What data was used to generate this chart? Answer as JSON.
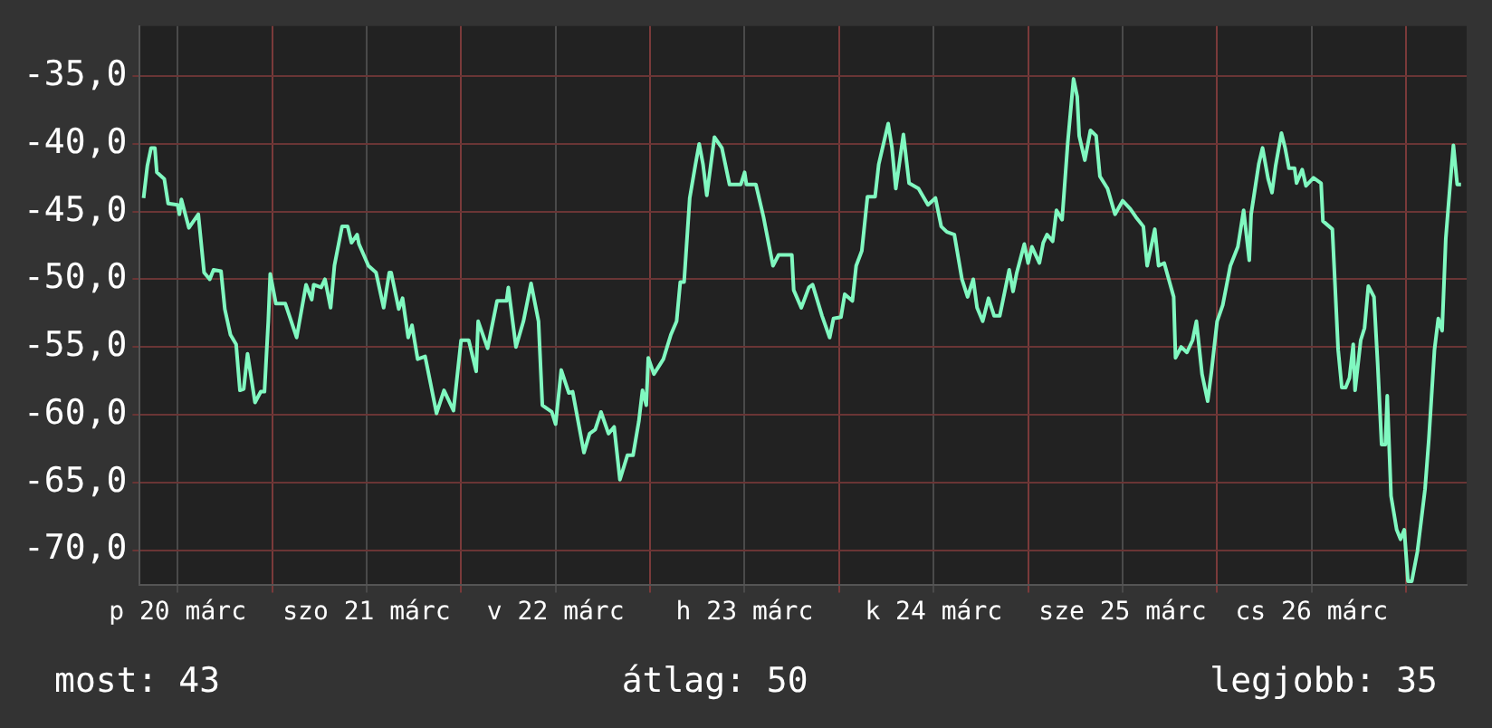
{
  "chart_data": {
    "type": "line",
    "x": [
      "--03-20T07:41",
      "--03-20T08:10",
      "--03-20T08:38",
      "--03-20T09:07",
      "--03-20T09:22",
      "--03-20T10:19",
      "--03-20T10:48",
      "--03-20T12:00",
      "--03-20T12:14",
      "--03-20T12:29",
      "--03-20T13:26",
      "--03-20T14:38",
      "--03-20T15:22",
      "--03-20T16:05",
      "--03-20T16:34",
      "--03-20T17:31",
      "--03-20T18:00",
      "--03-20T18:43",
      "--03-20T19:26",
      "--03-20T19:55",
      "--03-20T20:24",
      "--03-20T20:53",
      "--03-20T21:50",
      "--03-20T22:34",
      "--03-20T23:02",
      "--03-20T23:31",
      "--03-20T23:46",
      "--03-21T00:29",
      "--03-21T01:41",
      "--03-21T03:07",
      "--03-21T04:19",
      "--03-21T05:02",
      "--03-21T05:17",
      "--03-21T06:14",
      "--03-21T06:43",
      "--03-21T07:26",
      "--03-21T07:55",
      "--03-21T08:53",
      "--03-21T09:36",
      "--03-21T10:05",
      "--03-21T10:48",
      "--03-21T11:02",
      "--03-21T12:14",
      "--03-21T13:12",
      "--03-21T14:10",
      "--03-21T14:53",
      "--03-21T15:07",
      "--03-21T16:05",
      "--03-21T16:34",
      "--03-21T17:17",
      "--03-21T17:46",
      "--03-21T18:29",
      "--03-21T19:26",
      "--03-21T20:53",
      "--03-21T21:50",
      "--03-21T23:02",
      "--03-22T00:00",
      "--03-22T00:58",
      "--03-22T01:55",
      "--03-22T02:10",
      "--03-22T03:22",
      "--03-22T04:34",
      "--03-22T05:46",
      "--03-22T06:00",
      "--03-22T06:58",
      "--03-22T07:55",
      "--03-22T08:53",
      "--03-22T09:50",
      "--03-22T10:19",
      "--03-22T11:31",
      "--03-22T12:00",
      "--03-22T12:43",
      "--03-22T13:41",
      "--03-22T14:10",
      "--03-22T15:36",
      "--03-22T16:19",
      "--03-22T17:02",
      "--03-22T17:46",
      "--03-22T18:43",
      "--03-22T19:26",
      "--03-22T20:10",
      "--03-22T21:07",
      "--03-22T21:50",
      "--03-22T22:34",
      "--03-22T23:02",
      "--03-22T23:31",
      "--03-22T23:46",
      "--03-23T00:29",
      "--03-23T01:41",
      "--03-23T02:38",
      "--03-23T03:22",
      "--03-23T03:50",
      "--03-23T04:19",
      "--03-23T05:02",
      "--03-23T05:46",
      "--03-23T06:14",
      "--03-23T06:43",
      "--03-23T07:12",
      "--03-23T08:10",
      "--03-23T09:07",
      "--03-23T10:05",
      "--03-23T11:31",
      "--03-23T12:00",
      "--03-23T12:14",
      "--03-23T13:26",
      "--03-23T14:24",
      "--03-23T15:36",
      "--03-23T16:19",
      "--03-23T17:17",
      "--03-23T18:00",
      "--03-23T18:14",
      "--03-23T19:12",
      "--03-23T20:10",
      "--03-23T20:38",
      "--03-23T21:50",
      "--03-23T22:48",
      "--03-23T23:17",
      "--03-24T00:14",
      "--03-24T00:43",
      "--03-24T01:41",
      "--03-24T02:10",
      "--03-24T02:53",
      "--03-24T03:36",
      "--03-24T04:34",
      "--03-24T05:02",
      "--03-24T06:14",
      "--03-24T06:43",
      "--03-24T07:12",
      "--03-24T08:10",
      "--03-24T08:53",
      "--03-24T10:05",
      "--03-24T11:17",
      "--03-24T12:14",
      "--03-24T12:58",
      "--03-24T13:41",
      "--03-24T14:38",
      "--03-24T15:36",
      "--03-24T16:19",
      "--03-24T17:02",
      "--03-24T17:31",
      "--03-24T18:14",
      "--03-24T18:58",
      "--03-24T19:41",
      "--03-24T20:24",
      "--03-24T21:36",
      "--03-24T22:05",
      "--03-24T22:34",
      "--03-24T23:31",
      "--03-25T00:00",
      "--03-25T00:29",
      "--03-25T01:26",
      "--03-25T01:55",
      "--03-25T02:24",
      "--03-25T03:07",
      "--03-25T03:36",
      "--03-25T04:19",
      "--03-25T05:02",
      "--03-25T05:46",
      "--03-25T06:14",
      "--03-25T06:29",
      "--03-25T07:12",
      "--03-25T07:55",
      "--03-25T08:38",
      "--03-25T09:07",
      "--03-25T10:05",
      "--03-25T11:02",
      "--03-25T12:00",
      "--03-25T12:58",
      "--03-25T13:41",
      "--03-25T14:38",
      "--03-25T15:07",
      "--03-25T16:05",
      "--03-25T16:34",
      "--03-25T17:17",
      "--03-25T18:29",
      "--03-25T18:43",
      "--03-25T19:26",
      "--03-25T20:10",
      "--03-25T20:53",
      "--03-25T21:22",
      "--03-25T22:05",
      "--03-25T22:48",
      "--03-25T23:17",
      "--03-26T00:00",
      "--03-26T00:43",
      "--03-26T01:41",
      "--03-26T02:38",
      "--03-26T03:22",
      "--03-26T04:05",
      "--03-26T04:19",
      "--03-26T05:17",
      "--03-26T05:46",
      "--03-26T06:29",
      "--03-26T06:58",
      "--03-26T07:26",
      "--03-26T08:10",
      "--03-26T08:38",
      "--03-26T09:07",
      "--03-26T09:50",
      "--03-26T10:05",
      "--03-26T10:48",
      "--03-26T11:17",
      "--03-26T12:14",
      "--03-26T13:12",
      "--03-26T13:26",
      "--03-26T14:38",
      "--03-26T15:22",
      "--03-26T15:50",
      "--03-26T16:19",
      "--03-26T16:48",
      "--03-26T17:17",
      "--03-26T17:31",
      "--03-26T18:14",
      "--03-26T18:43",
      "--03-26T19:12",
      "--03-26T19:55",
      "--03-26T20:24",
      "--03-26T20:53",
      "--03-26T21:22",
      "--03-26T21:36",
      "--03-26T22:05",
      "--03-26T22:48",
      "--03-26T23:17",
      "--03-26T23:46",
      "--03-27T00:14",
      "--03-27T00:43",
      "--03-27T01:26",
      "--03-27T02:24",
      "--03-27T02:53",
      "--03-27T03:36",
      "--03-27T04:05",
      "--03-27T04:34",
      "--03-27T05:02",
      "--03-27T05:31",
      "--03-27T06:00",
      "--03-27T06:29",
      "--03-27T06:58"
    ],
    "values": [
      -44.0,
      -41.6,
      -40.3,
      -40.3,
      -42.1,
      -42.6,
      -44.4,
      -44.5,
      -45.2,
      -44.1,
      -46.2,
      -45.2,
      -49.5,
      -50.0,
      -49.3,
      -49.4,
      -52.2,
      -54.1,
      -54.8,
      -58.2,
      -58.1,
      -55.5,
      -59.1,
      -58.3,
      -58.3,
      -53.1,
      -49.6,
      -51.8,
      -51.8,
      -54.3,
      -50.4,
      -51.5,
      -50.4,
      -50.6,
      -50.0,
      -52.1,
      -49.0,
      -46.1,
      -46.1,
      -47.3,
      -46.7,
      -47.4,
      -49.0,
      -49.5,
      -52.1,
      -49.5,
      -49.5,
      -52.2,
      -51.4,
      -54.3,
      -53.4,
      -55.9,
      -55.7,
      -59.9,
      -58.2,
      -59.7,
      -54.5,
      -54.5,
      -56.8,
      -53.1,
      -55.1,
      -51.6,
      -51.6,
      -50.6,
      -55.0,
      -53.1,
      -50.3,
      -53.1,
      -59.3,
      -59.8,
      -60.7,
      -56.7,
      -58.4,
      -58.3,
      -62.8,
      -61.4,
      -61.1,
      -59.8,
      -61.4,
      -60.9,
      -64.8,
      -63.0,
      -63.0,
      -60.5,
      -58.2,
      -59.3,
      -55.8,
      -57.0,
      -55.9,
      -54.1,
      -53.1,
      -50.2,
      -50.2,
      -44.0,
      -41.5,
      -40.0,
      -41.5,
      -43.8,
      -39.5,
      -40.3,
      -43.0,
      -43.0,
      -42.1,
      -43.0,
      -43.0,
      -45.4,
      -49.0,
      -48.2,
      -48.2,
      -48.2,
      -50.8,
      -52.1,
      -50.6,
      -50.4,
      -52.7,
      -54.3,
      -52.9,
      -52.8,
      -51.1,
      -51.6,
      -49.0,
      -47.9,
      -43.9,
      -43.9,
      -41.5,
      -38.5,
      -40.3,
      -43.3,
      -39.3,
      -42.9,
      -43.3,
      -44.5,
      -44.0,
      -46.1,
      -46.5,
      -46.7,
      -50.0,
      -51.3,
      -50.0,
      -52.1,
      -53.1,
      -51.4,
      -52.7,
      -52.7,
      -49.3,
      -50.9,
      -49.5,
      -47.4,
      -48.8,
      -47.6,
      -48.8,
      -47.3,
      -46.7,
      -47.2,
      -44.9,
      -45.6,
      -39.9,
      -35.2,
      -36.5,
      -39.4,
      -41.2,
      -39.0,
      -39.4,
      -42.4,
      -43.3,
      -45.2,
      -44.2,
      -44.8,
      -45.4,
      -46.1,
      -49.0,
      -46.3,
      -49.0,
      -48.8,
      -51.3,
      -55.8,
      -55.0,
      -55.4,
      -54.5,
      -53.1,
      -57.0,
      -59.0,
      -56.8,
      -53.1,
      -51.9,
      -49.0,
      -47.6,
      -44.9,
      -48.6,
      -45.2,
      -41.5,
      -40.3,
      -42.6,
      -43.6,
      -41.6,
      -39.2,
      -40.3,
      -41.8,
      -41.8,
      -42.9,
      -41.9,
      -43.1,
      -42.5,
      -42.9,
      -45.7,
      -46.3,
      -55.2,
      -58.0,
      -58.0,
      -57.3,
      -54.8,
      -58.2,
      -54.5,
      -53.6,
      -50.5,
      -51.3,
      -56.4,
      -62.2,
      -62.2,
      -58.6,
      -66.0,
      -68.5,
      -69.2,
      -68.5,
      -72.3,
      -72.3,
      -70.1,
      -65.5,
      -61.8,
      -55.2,
      -52.9,
      -53.8,
      -47.0,
      -43.5,
      -40.1,
      -43.0,
      -43.0
    ],
    "color": "#80f8c0",
    "xlim": [
      "--03-20T07:12",
      "--03-27T07:41"
    ],
    "xticks": [
      {
        "value": "--03-20T12:00",
        "label": "p 20 márc"
      },
      {
        "value": "--03-21",
        "label": null
      },
      {
        "value": "--03-21T12:00",
        "label": "szo 21 márc"
      },
      {
        "value": "--03-22",
        "label": null
      },
      {
        "value": "--03-22T12:00",
        "label": "v 22 márc"
      },
      {
        "value": "--03-23",
        "label": null
      },
      {
        "value": "--03-23T12:00",
        "label": "h 23 márc"
      },
      {
        "value": "--03-24",
        "label": null
      },
      {
        "value": "--03-24T12:00",
        "label": "k 24 márc"
      },
      {
        "value": "--03-25",
        "label": null
      },
      {
        "value": "--03-25T12:00",
        "label": "sze 25 márc"
      },
      {
        "value": "--03-26",
        "label": null
      },
      {
        "value": "--03-26T12:00",
        "label": "cs 26 márc"
      },
      {
        "value": "--03-27",
        "label": null
      }
    ],
    "ylim": [
      -72.6,
      -31.3
    ],
    "yticks": [
      {
        "value": -35,
        "label": "-35,0"
      },
      {
        "value": -40,
        "label": "-40,0"
      },
      {
        "value": -45,
        "label": "-45,0"
      },
      {
        "value": -50,
        "label": "-50,0"
      },
      {
        "value": -55,
        "label": "-55,0"
      },
      {
        "value": -60,
        "label": "-60,0"
      },
      {
        "value": -65,
        "label": "-65,0"
      },
      {
        "value": -70,
        "label": "-70,0"
      }
    ],
    "grid": true,
    "legend": false,
    "marker": "none",
    "line_style": "solid",
    "annotations": [
      "most: 43",
      "átlag: 50",
      "legjobb: 35"
    ]
  }
}
